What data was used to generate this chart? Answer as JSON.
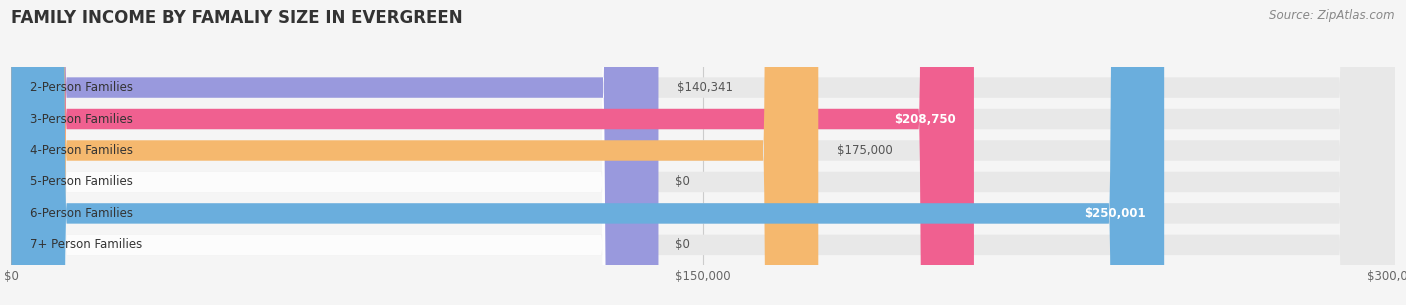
{
  "title": "FAMILY INCOME BY FAMALIY SIZE IN EVERGREEN",
  "source": "Source: ZipAtlas.com",
  "categories": [
    "2-Person Families",
    "3-Person Families",
    "4-Person Families",
    "5-Person Families",
    "6-Person Families",
    "7+ Person Families"
  ],
  "values": [
    140341,
    208750,
    175000,
    0,
    250001,
    0
  ],
  "bar_colors": [
    "#9999dd",
    "#f06090",
    "#f5b86e",
    "#f4a0a0",
    "#6aaedd",
    "#c8a8d8"
  ],
  "label_inside": [
    false,
    true,
    false,
    false,
    true,
    false
  ],
  "xmax": 300000,
  "xtick_labels": [
    "$0",
    "$150,000",
    "$300,000"
  ],
  "background_color": "#f5f5f5",
  "bar_background_color": "#e8e8e8",
  "title_fontsize": 12,
  "label_fontsize": 8.5,
  "tick_fontsize": 8.5,
  "source_fontsize": 8.5
}
